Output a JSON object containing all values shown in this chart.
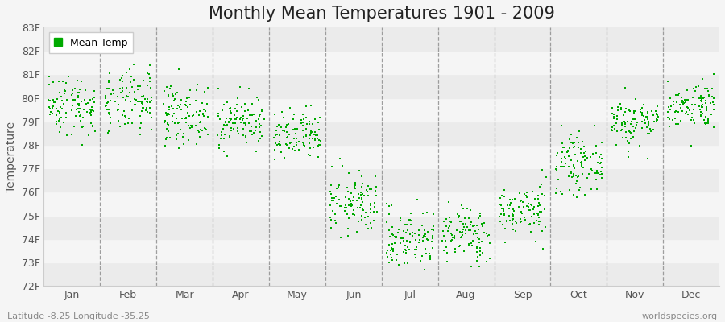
{
  "title": "Monthly Mean Temperatures 1901 - 2009",
  "ylabel": "Temperature",
  "ylim": [
    72,
    83
  ],
  "yticks": [
    72,
    73,
    74,
    75,
    76,
    77,
    78,
    79,
    80,
    81,
    82,
    83
  ],
  "ytick_labels": [
    "72F",
    "73F",
    "74F",
    "75F",
    "76F",
    "77F",
    "78F",
    "79F",
    "80F",
    "81F",
    "82F",
    "83F"
  ],
  "months": [
    "Jan",
    "Feb",
    "Mar",
    "Apr",
    "May",
    "Jun",
    "Jul",
    "Aug",
    "Sep",
    "Oct",
    "Nov",
    "Dec"
  ],
  "marker_color": "#00aa00",
  "background_color": "#f5f5f5",
  "band_color_light": "#ebebeb",
  "band_color_white": "#f5f5f5",
  "legend_label": "Mean Temp",
  "bottom_left": "Latitude -8.25 Longitude -35.25",
  "bottom_right": "worldspecies.org",
  "n_years": 109,
  "mean_temps": [
    79.7,
    79.8,
    79.3,
    79.0,
    78.3,
    75.5,
    74.0,
    74.2,
    75.2,
    77.2,
    79.0,
    79.7
  ],
  "std_temps": [
    0.65,
    0.68,
    0.62,
    0.55,
    0.55,
    0.65,
    0.65,
    0.6,
    0.55,
    0.6,
    0.52,
    0.5
  ],
  "title_fontsize": 15,
  "axis_fontsize": 10,
  "tick_fontsize": 9,
  "figsize": [
    9.0,
    4.0
  ],
  "dpi": 100
}
